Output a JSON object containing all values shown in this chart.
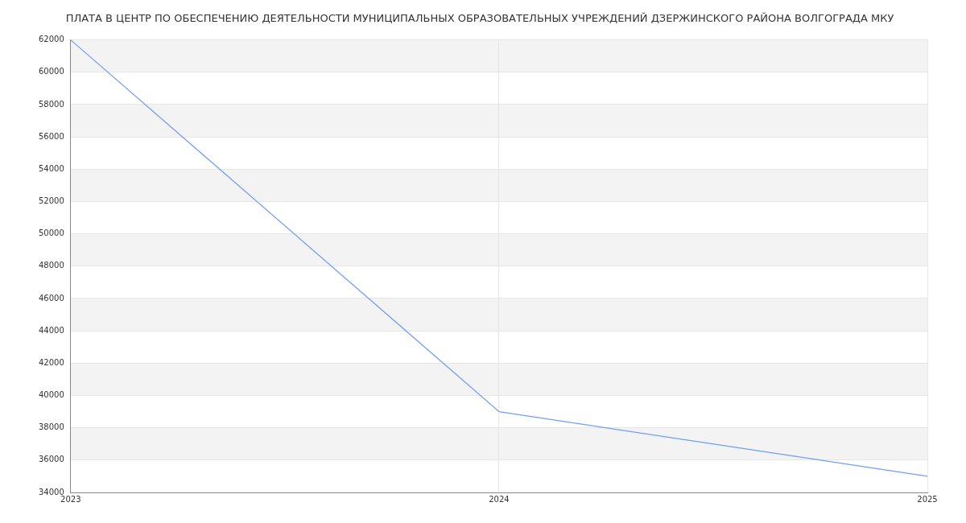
{
  "chart_data": {
    "type": "line",
    "title": "ПЛАТА В ЦЕНТР ПО ОБЕСПЕЧЕНИЮ ДЕЯТЕЛЬНОСТИ МУНИЦИПАЛЬНЫХ ОБРАЗОВАТЕЛЬНЫХ УЧРЕЖДЕНИЙ ДЗЕРЖИНСКОГО РАЙОНА ВОЛГОГРАДА МКУ",
    "x": [
      2023,
      2024,
      2025
    ],
    "series": [
      {
        "color": "#6e9ef5",
        "values": [
          62000,
          39000,
          35000
        ]
      }
    ],
    "xlim": [
      2023,
      2025
    ],
    "xticks": [
      2023,
      2024,
      2025
    ],
    "ylim": [
      34000,
      62000
    ],
    "yticks": [
      34000,
      36000,
      38000,
      40000,
      42000,
      44000,
      46000,
      48000,
      50000,
      52000,
      54000,
      56000,
      58000,
      60000,
      62000
    ],
    "grid": true,
    "legend": false,
    "marker": "none",
    "line_style": "solid"
  }
}
